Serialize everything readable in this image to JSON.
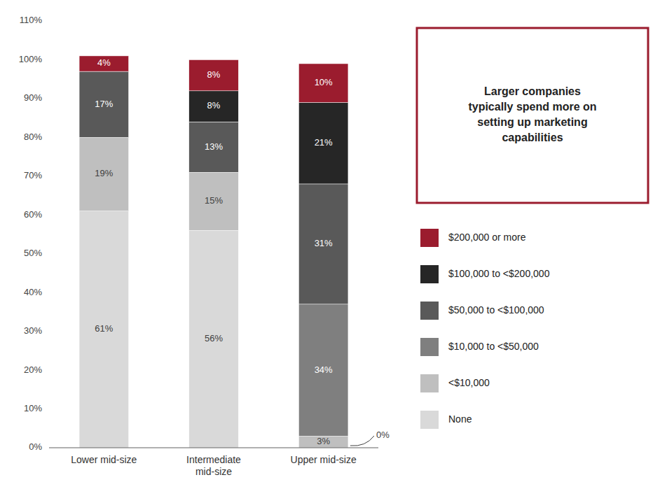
{
  "chart_data": {
    "type": "bar",
    "stacked": true,
    "categories": [
      "Lower mid-size",
      "Intermediate\nmid-size",
      "Upper mid-size"
    ],
    "series": [
      {
        "name": "None",
        "color": "#d9d9d9",
        "values": [
          61,
          56,
          0
        ],
        "value_labels": [
          "61%",
          "56%",
          "0%"
        ]
      },
      {
        "name": "<$10,000",
        "color": "#bfbfbf",
        "values": [
          19,
          15,
          3
        ],
        "value_labels": [
          "19%",
          "15%",
          "3%"
        ]
      },
      {
        "name": "$10,000 to <$50,000",
        "color": "#7f7f7f",
        "values": [
          0,
          0,
          34
        ],
        "value_labels": [
          null,
          null,
          "34%"
        ]
      },
      {
        "name": "$50,000 to <$100,000",
        "color": "#595959",
        "values": [
          17,
          13,
          31
        ],
        "value_labels": [
          "17%",
          "13%",
          "31%"
        ]
      },
      {
        "name": "$100,000 to <$200,000",
        "color": "#262626",
        "values": [
          0,
          8,
          21
        ],
        "value_labels": [
          null,
          "8%",
          "21%"
        ]
      },
      {
        "name": "$200,000 or more",
        "color": "#9b1c2e",
        "values": [
          4,
          8,
          10
        ],
        "value_labels": [
          "4%",
          "8%",
          "10%"
        ]
      }
    ],
    "ylim": [
      0,
      110
    ],
    "yticks": [
      {
        "value": 0,
        "label": "0%"
      },
      {
        "value": 10,
        "label": "10%"
      },
      {
        "value": 20,
        "label": "20%"
      },
      {
        "value": 30,
        "label": "30%"
      },
      {
        "value": 40,
        "label": "40%"
      },
      {
        "value": 50,
        "label": "50%"
      },
      {
        "value": 60,
        "label": "60%"
      },
      {
        "value": 70,
        "label": "70%"
      },
      {
        "value": 80,
        "label": "80%"
      },
      {
        "value": 90,
        "label": "90%"
      },
      {
        "value": 100,
        "label": "100%"
      },
      {
        "value": 110,
        "label": "110%"
      }
    ],
    "grid": false,
    "legend": "right",
    "data_labels": true,
    "annotations": [
      {
        "text": "Larger companies\ntypically spend more on\nsetting up marketing\ncapabilities",
        "color": "#9b1c2e"
      }
    ]
  }
}
